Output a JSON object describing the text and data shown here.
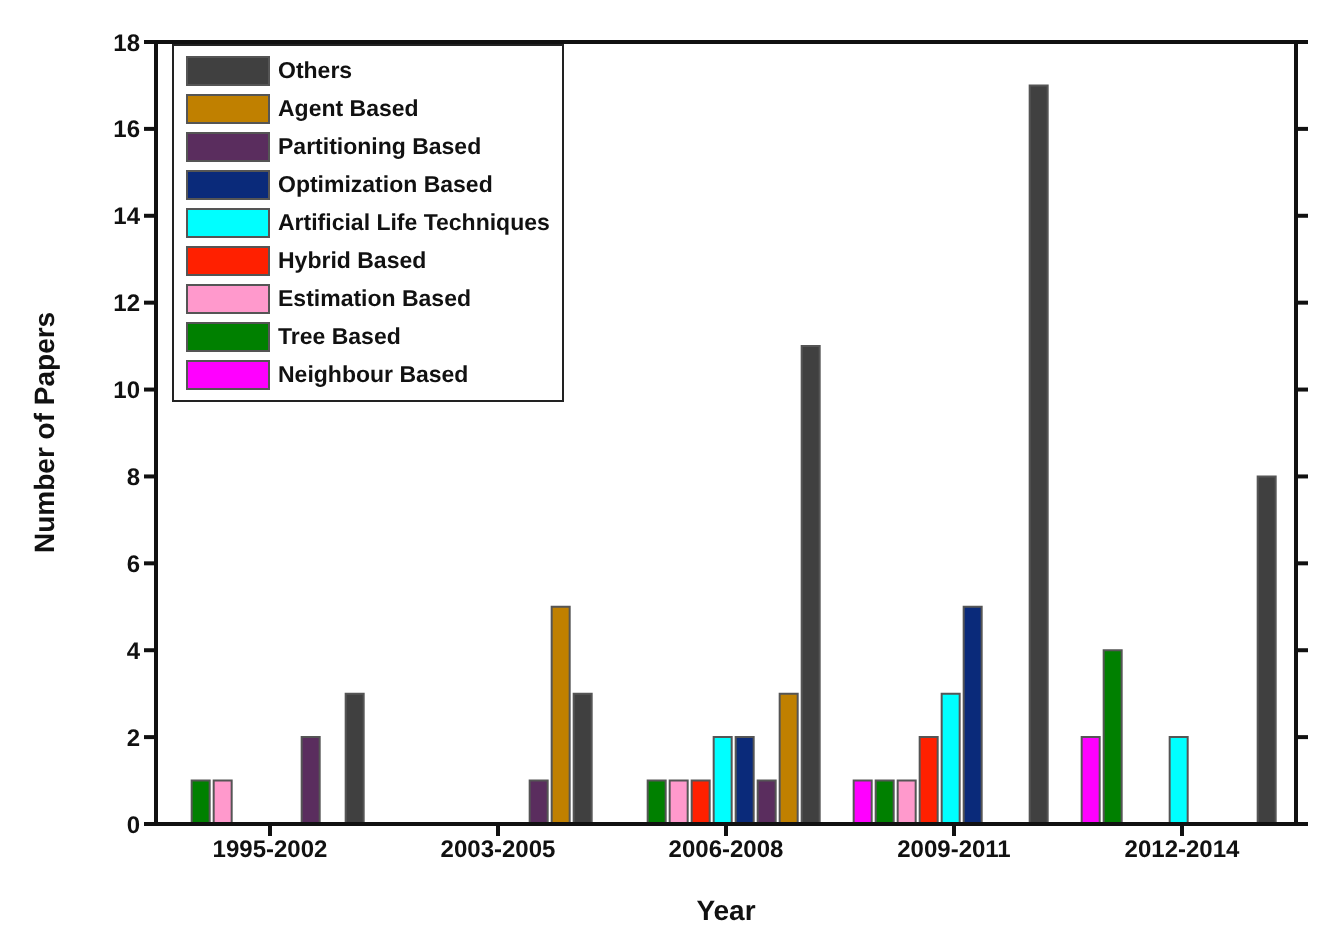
{
  "chart_data": {
    "type": "bar",
    "xlabel": "Year",
    "ylabel": "Number of Papers",
    "categories": [
      "1995-2002",
      "2003-2005",
      "2006-2008",
      "2009-2011",
      "2012-2014"
    ],
    "series": [
      {
        "name": "Others",
        "color": "#404040",
        "values": [
          3,
          3,
          11,
          17,
          8
        ]
      },
      {
        "name": "Agent Based",
        "color": "#c08000",
        "values": [
          null,
          5,
          3,
          null,
          null
        ]
      },
      {
        "name": "Partitioning Based",
        "color": "#5a2d5e",
        "values": [
          2,
          1,
          1,
          null,
          null
        ]
      },
      {
        "name": "Optimization Based",
        "color": "#0a2a7a",
        "values": [
          null,
          null,
          2,
          5,
          null
        ]
      },
      {
        "name": "Artificial Life Techniques",
        "color": "#00ffff",
        "values": [
          null,
          null,
          2,
          3,
          2
        ]
      },
      {
        "name": "Hybrid Based",
        "color": "#ff2000",
        "values": [
          null,
          null,
          1,
          2,
          null
        ]
      },
      {
        "name": "Estimation Based",
        "color": "#ff99cc",
        "values": [
          1,
          null,
          1,
          1,
          null
        ]
      },
      {
        "name": "Tree Based",
        "color": "#008000",
        "values": [
          1,
          null,
          1,
          1,
          4
        ]
      },
      {
        "name": "Neighbour Based",
        "color": "#ff00ff",
        "values": [
          null,
          null,
          null,
          1,
          2
        ]
      }
    ],
    "ylim": [
      0,
      18
    ],
    "yticks": [
      0,
      2,
      4,
      6,
      8,
      10,
      12,
      14,
      16,
      18
    ],
    "legend": "top left",
    "grid": false
  }
}
